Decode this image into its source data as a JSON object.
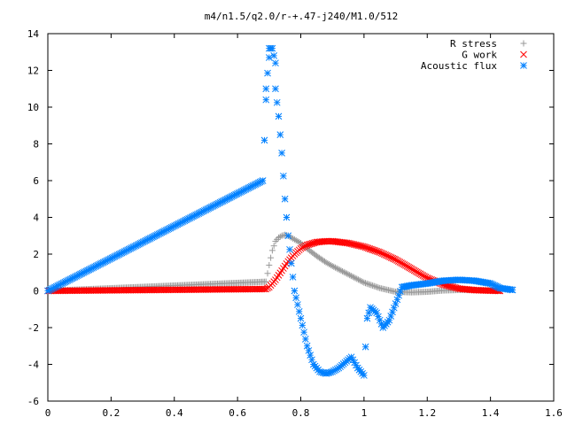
{
  "chart_data": {
    "type": "scatter",
    "title": "m4/n1.5/q2.0/r-+.47-j240/M1.0/512",
    "xlabel": "",
    "ylabel": "",
    "xlim": [
      0,
      1.6
    ],
    "ylim": [
      -6,
      14
    ],
    "x_ticks": [
      0,
      0.2,
      0.4,
      0.6,
      0.8,
      1,
      1.2,
      1.4,
      1.6
    ],
    "x_tick_labels": [
      "0",
      "0.2",
      "0.4",
      "0.6",
      "0.8",
      "1",
      "1.2",
      "1.4",
      "1.6"
    ],
    "y_ticks": [
      -6,
      -4,
      -2,
      0,
      2,
      4,
      6,
      8,
      10,
      12,
      14
    ],
    "y_tick_labels": [
      "-6",
      "-4",
      "-2",
      "0",
      "2",
      "4",
      "6",
      "8",
      "10",
      "12",
      "14"
    ],
    "grid": false,
    "legend_position": "top-right",
    "series": [
      {
        "name": "R stress",
        "marker": "plus",
        "color": "#999999",
        "x": [
          0.0,
          0.69,
          0.7,
          0.71,
          0.72,
          0.73,
          0.74,
          0.75,
          0.76,
          0.78,
          0.8,
          0.82,
          0.85,
          0.88,
          0.9,
          0.95,
          1.0,
          1.05,
          1.1,
          1.15,
          1.2,
          1.25,
          1.3,
          1.35,
          1.4,
          1.43
        ],
        "y": [
          0.0,
          0.5,
          1.4,
          2.2,
          2.7,
          2.9,
          3.0,
          3.05,
          3.0,
          2.8,
          2.6,
          2.3,
          1.9,
          1.55,
          1.35,
          0.9,
          0.45,
          0.15,
          -0.05,
          -0.08,
          -0.05,
          0.02,
          0.05,
          0.04,
          0.02,
          0.0
        ]
      },
      {
        "name": "G work",
        "marker": "cross",
        "color": "#ff0000",
        "x": [
          0.0,
          0.69,
          0.7,
          0.72,
          0.74,
          0.76,
          0.78,
          0.8,
          0.82,
          0.85,
          0.88,
          0.9,
          0.95,
          1.0,
          1.05,
          1.1,
          1.15,
          1.2,
          1.25,
          1.3,
          1.35,
          1.4,
          1.43
        ],
        "y": [
          0.0,
          0.1,
          0.2,
          0.6,
          1.1,
          1.6,
          2.0,
          2.3,
          2.5,
          2.65,
          2.7,
          2.7,
          2.6,
          2.4,
          2.1,
          1.7,
          1.2,
          0.7,
          0.35,
          0.12,
          0.04,
          0.01,
          0.0
        ]
      },
      {
        "name": "Acoustic flux",
        "marker": "star",
        "color": "#0080ff",
        "x": [
          0.0,
          0.68,
          0.69,
          0.69,
          0.7,
          0.7,
          0.71,
          0.72,
          0.72,
          0.73,
          0.74,
          0.75,
          0.76,
          0.77,
          0.78,
          0.8,
          0.82,
          0.84,
          0.86,
          0.88,
          0.9,
          0.92,
          0.94,
          0.96,
          0.98,
          1.0,
          1.01,
          1.02,
          1.04,
          1.06,
          1.08,
          1.1,
          1.12,
          1.15,
          1.2,
          1.25,
          1.3,
          1.35,
          1.4,
          1.43,
          1.47
        ],
        "y": [
          0.0,
          6.0,
          10.4,
          11.0,
          12.7,
          13.2,
          13.2,
          12.4,
          11.0,
          9.5,
          7.5,
          5.0,
          3.0,
          1.5,
          0.0,
          -1.5,
          -3.0,
          -4.0,
          -4.4,
          -4.5,
          -4.4,
          -4.2,
          -3.9,
          -3.6,
          -4.2,
          -4.6,
          -1.5,
          -0.9,
          -1.2,
          -2.0,
          -1.6,
          -0.7,
          0.2,
          0.3,
          0.4,
          0.55,
          0.6,
          0.55,
          0.4,
          0.15,
          0.05
        ]
      }
    ]
  }
}
